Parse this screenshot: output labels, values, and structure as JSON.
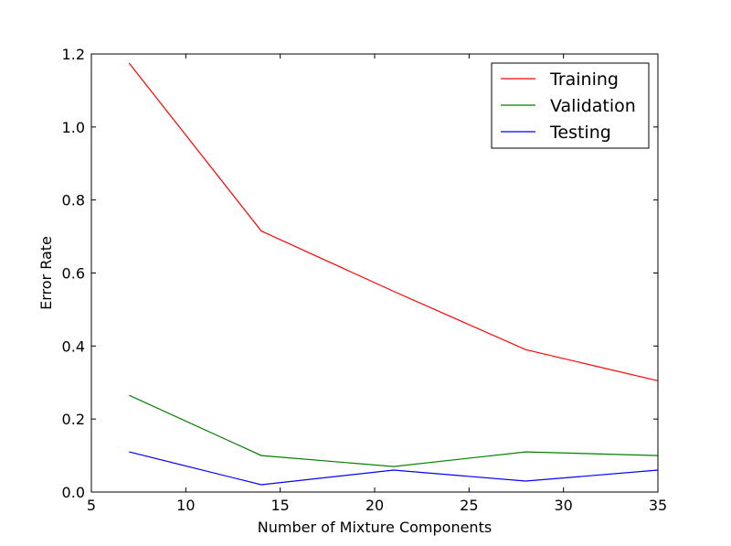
{
  "chart_data": {
    "type": "line",
    "xlabel": "Number of Mixture Components",
    "ylabel": "Error Rate",
    "xlim": [
      5,
      35
    ],
    "ylim": [
      0.0,
      1.2
    ],
    "xticks": [
      "5",
      "10",
      "15",
      "20",
      "25",
      "30",
      "35"
    ],
    "yticks": [
      "0.0",
      "0.2",
      "0.4",
      "0.6",
      "0.8",
      "1.0",
      "1.2"
    ],
    "grid": false,
    "legend_position": "top-right",
    "x": [
      7,
      14,
      21,
      28,
      35
    ],
    "series": [
      {
        "name": "Training",
        "color": "#ff0000",
        "values": [
          1.175,
          0.715,
          0.55,
          0.39,
          0.305
        ]
      },
      {
        "name": "Validation",
        "color": "#008000",
        "values": [
          0.265,
          0.1,
          0.07,
          0.11,
          0.1
        ]
      },
      {
        "name": "Testing",
        "color": "#0000ff",
        "values": [
          0.11,
          0.02,
          0.06,
          0.03,
          0.06
        ]
      }
    ]
  }
}
